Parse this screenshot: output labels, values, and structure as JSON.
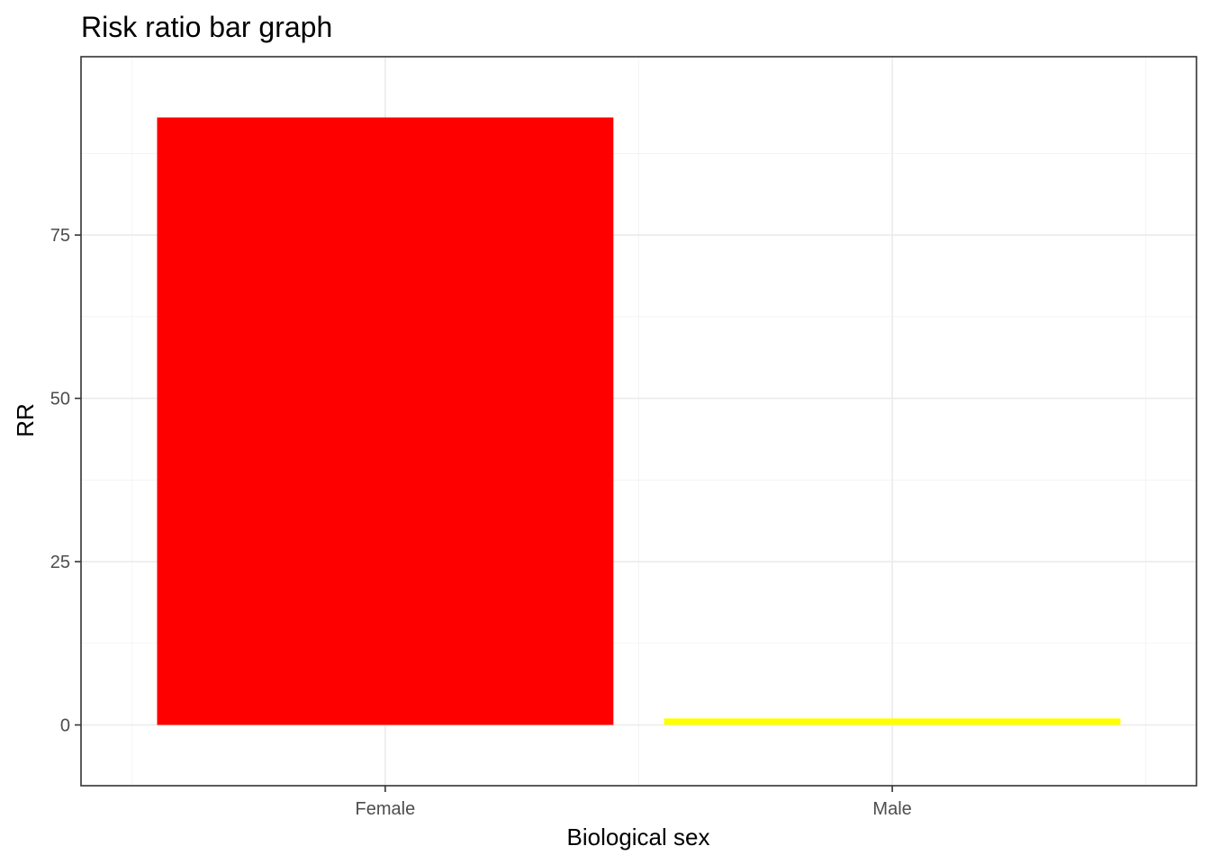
{
  "chart_data": {
    "type": "bar",
    "title": "Risk ratio bar graph",
    "xlabel": "Biological sex",
    "ylabel": "RR",
    "categories": [
      "Female",
      "Male"
    ],
    "values": [
      93,
      1
    ],
    "colors": [
      "#ff0000",
      "#ffff00"
    ],
    "ylim": [
      -9.3,
      102.3
    ],
    "yticks": [
      0,
      25,
      50,
      75
    ],
    "ytick_labels": [
      "0",
      "25",
      "50",
      "75"
    ],
    "grid": true,
    "legend": "none",
    "theme": {
      "panel_border": "#333333",
      "grid_major": "#ebebeb",
      "grid_minor": "#f2f2f2",
      "tick_text": "#4d4d4d"
    }
  }
}
